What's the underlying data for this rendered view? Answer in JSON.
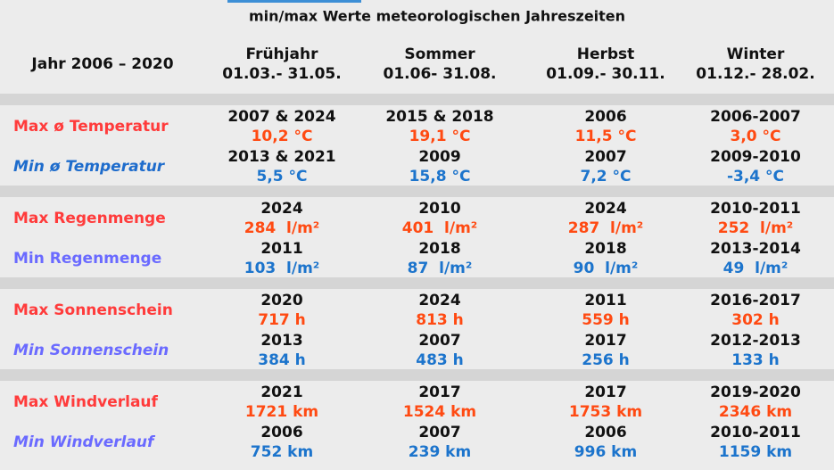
{
  "title": "min/max Werte meteorologischen Jahreszeiten",
  "header": {
    "label": "Jahr 2006 – 2020",
    "columns": [
      {
        "name": "Frühjahr",
        "dates": "01.03.- 31.05."
      },
      {
        "name": "Sommer",
        "dates": "01.06- 31.08."
      },
      {
        "name": "Herbst",
        "dates": "01.09.- 30.11."
      },
      {
        "name": "Winter",
        "dates": "01.12.- 28.02."
      }
    ]
  },
  "groups": [
    {
      "rows": [
        {
          "label": "Max ø Temperatur",
          "cells": [
            {
              "year": "2007 & 2024",
              "value": "10,2 °C"
            },
            {
              "year": "2015 & 2018",
              "value": "19,1 °C"
            },
            {
              "year": "2006",
              "value": "11,5 °C"
            },
            {
              "year": "2006-2007",
              "value": "3,0 °C"
            }
          ]
        },
        {
          "label": "Min ø Temperatur",
          "cells": [
            {
              "year": "2013 & 2021",
              "value": "5,5 °C"
            },
            {
              "year": "2009",
              "value": "15,8 °C"
            },
            {
              "year": "2007",
              "value": "7,2 °C"
            },
            {
              "year": "2009-2010",
              "value": "-3,4 °C"
            }
          ]
        }
      ]
    },
    {
      "rows": [
        {
          "label": "Max Regenmenge",
          "cells": [
            {
              "year": "2024",
              "value": "284  l/m²"
            },
            {
              "year": "2010",
              "value": "401  l/m²"
            },
            {
              "year": "2024",
              "value": "287  l/m²"
            },
            {
              "year": "2010-2011",
              "value": "252  l/m²"
            }
          ]
        },
        {
          "label": "Min Regenmenge",
          "cells": [
            {
              "year": "2011",
              "value": "103  l/m²"
            },
            {
              "year": "2018",
              "value": "87  l/m²"
            },
            {
              "year": "2018",
              "value": "90  l/m²"
            },
            {
              "year": "2013-2014",
              "value": "49  l/m²"
            }
          ]
        }
      ]
    },
    {
      "rows": [
        {
          "label": "Max Sonnenschein",
          "cells": [
            {
              "year": "2020",
              "value": "717 h"
            },
            {
              "year": "2024",
              "value": "813 h"
            },
            {
              "year": "2011",
              "value": "559 h"
            },
            {
              "year": "2016-2017",
              "value": "302 h"
            }
          ]
        },
        {
          "label": "Min Sonnenschein",
          "cells": [
            {
              "year": "2013",
              "value": "384 h"
            },
            {
              "year": "2007",
              "value": "483 h"
            },
            {
              "year": "2017",
              "value": "256 h"
            },
            {
              "year": "2012-2013",
              "value": "133 h"
            }
          ]
        }
      ]
    },
    {
      "rows": [
        {
          "label": "Max Windverlauf",
          "cells": [
            {
              "year": "2021",
              "value": "1721 km"
            },
            {
              "year": "2017",
              "value": "1524 km"
            },
            {
              "year": "2017",
              "value": "1753 km"
            },
            {
              "year": "2019-2020",
              "value": "2346 km"
            }
          ]
        },
        {
          "label": "Min Windverlauf",
          "cells": [
            {
              "year": "2006",
              "value": "752 km"
            },
            {
              "year": "2007",
              "value": "239 km"
            },
            {
              "year": "2006",
              "value": "996 km"
            },
            {
              "year": "2010-2011",
              "value": "1159 km"
            }
          ]
        }
      ]
    }
  ]
}
